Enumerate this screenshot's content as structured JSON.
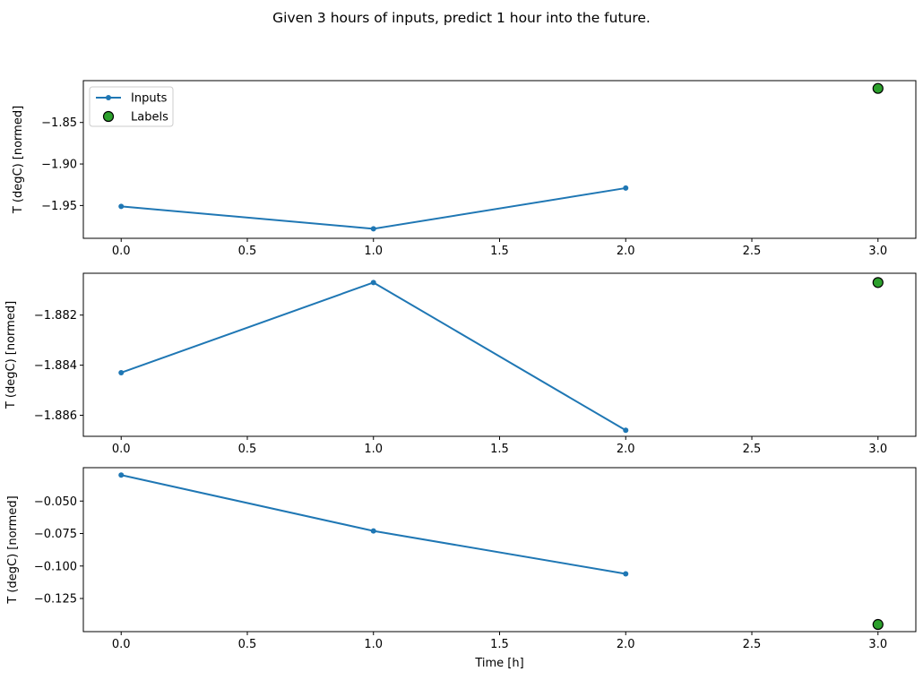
{
  "title": "Given 3 hours of inputs, predict 1 hour into the future.",
  "legend": {
    "position": "upper-left-of-first-subplot",
    "entries": [
      {
        "label": "Inputs",
        "marker": "line-with-dot"
      },
      {
        "label": "Labels",
        "marker": "filled-circle"
      }
    ]
  },
  "colors": {
    "inputs_line": "#1f77b4",
    "labels_marker": "#2ca02c",
    "marker_edge": "#000000",
    "axes_line": "#000000",
    "legend_border": "#cccccc",
    "background": "#ffffff"
  },
  "chart_data": {
    "type": "line",
    "title": "Given 3 hours of inputs, predict 1 hour into the future.",
    "xlabel": "Time [h]",
    "grid": false,
    "xlim": [
      -0.15,
      3.15
    ],
    "xticks": [
      {
        "v": 0.0,
        "label": "0.0"
      },
      {
        "v": 0.5,
        "label": "0.5"
      },
      {
        "v": 1.0,
        "label": "1.0"
      },
      {
        "v": 1.5,
        "label": "1.5"
      },
      {
        "v": 2.0,
        "label": "2.0"
      },
      {
        "v": 2.5,
        "label": "2.5"
      },
      {
        "v": 3.0,
        "label": "3.0"
      }
    ],
    "subplots": [
      {
        "ylabel": "T (degC) [normed]",
        "ylim": [
          -1.9895,
          -1.7996
        ],
        "yticks": [
          {
            "v": -1.85,
            "label": "−1.85"
          },
          {
            "v": -1.9,
            "label": "−1.90"
          },
          {
            "v": -1.95,
            "label": "−1.95"
          }
        ],
        "series": [
          {
            "name": "Inputs",
            "style": "line-marker",
            "x": [
              0,
              1,
              2
            ],
            "y": [
              -1.951,
              -1.978,
              -1.929
            ]
          },
          {
            "name": "Labels",
            "style": "scatter",
            "x": [
              3
            ],
            "y": [
              -1.809
            ]
          }
        ],
        "has_legend": true,
        "show_xtick_labels": true,
        "show_xlabel": false
      },
      {
        "ylabel": "T (degC) [normed]",
        "ylim": [
          -1.88684,
          -1.88033
        ],
        "yticks": [
          {
            "v": -1.882,
            "label": "−1.882"
          },
          {
            "v": -1.884,
            "label": "−1.884"
          },
          {
            "v": -1.886,
            "label": "−1.886"
          }
        ],
        "series": [
          {
            "name": "Inputs",
            "style": "line-marker",
            "x": [
              0,
              1,
              2
            ],
            "y": [
              -1.8843,
              -1.8807,
              -1.8866
            ]
          },
          {
            "name": "Labels",
            "style": "scatter",
            "x": [
              3
            ],
            "y": [
              -1.8807
            ]
          }
        ],
        "has_legend": false,
        "show_xtick_labels": true,
        "show_xlabel": false
      },
      {
        "ylabel": "T (degC) [normed]",
        "ylim": [
          -0.1505,
          -0.0243
        ],
        "yticks": [
          {
            "v": -0.05,
            "label": "−0.050"
          },
          {
            "v": -0.075,
            "label": "−0.075"
          },
          {
            "v": -0.1,
            "label": "−0.100"
          },
          {
            "v": -0.125,
            "label": "−0.125"
          }
        ],
        "series": [
          {
            "name": "Inputs",
            "style": "line-marker",
            "x": [
              0,
              1,
              2
            ],
            "y": [
              -0.03,
              -0.073,
              -0.106
            ]
          },
          {
            "name": "Labels",
            "style": "scatter",
            "x": [
              3
            ],
            "y": [
              -0.145
            ]
          }
        ],
        "has_legend": false,
        "show_xtick_labels": true,
        "show_xlabel": true
      }
    ]
  }
}
